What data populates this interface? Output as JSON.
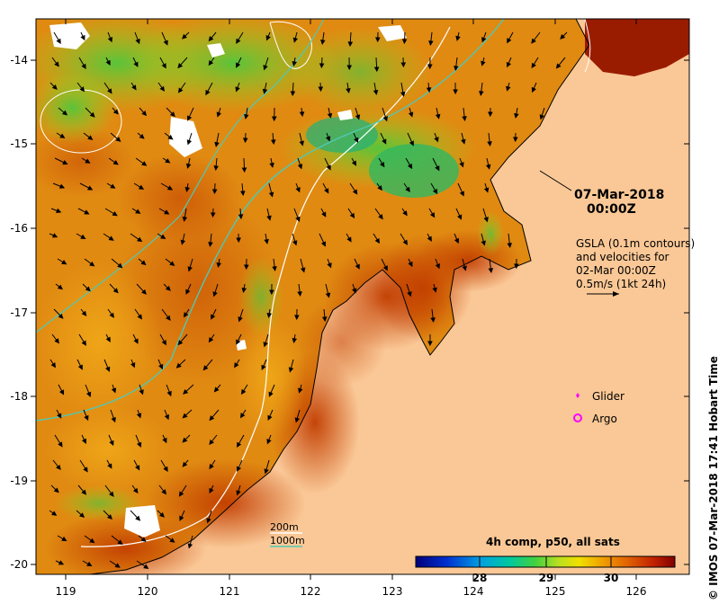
{
  "map": {
    "lon_ticks": [
      "119",
      "120",
      "121",
      "122",
      "123",
      "124",
      "125",
      "126"
    ],
    "lat_ticks": [
      "-14",
      "-15",
      "-16",
      "-17",
      "-18",
      "-19",
      "-20"
    ],
    "timestamp_date": "07-Mar-2018",
    "timestamp_time": "00:00Z",
    "gsla_line1": "GSLA (0.1m contours)",
    "gsla_line2": "and velocities for",
    "gsla_line3": "02-Mar 00:00Z",
    "gsla_line4": "0.5m/s (1kt 24h)",
    "legend_glider": "Glider",
    "legend_argo": "Argo",
    "depth_200": "200m",
    "depth_1000": "1000m",
    "colorbar_title": "4h comp, p50, all sats",
    "colorbar_ticks": [
      "28",
      "29",
      "30"
    ],
    "credit": "© IMOS 07-Mar-2018 17:41 Hobart Time",
    "colors": {
      "land": "#fac896",
      "warm": "#c84a00",
      "mid": "#e89410",
      "cool": "#8ed820",
      "glider": "#ff00ff",
      "contour_200": "#ffffff",
      "contour_1000": "#4fc9b5"
    }
  }
}
